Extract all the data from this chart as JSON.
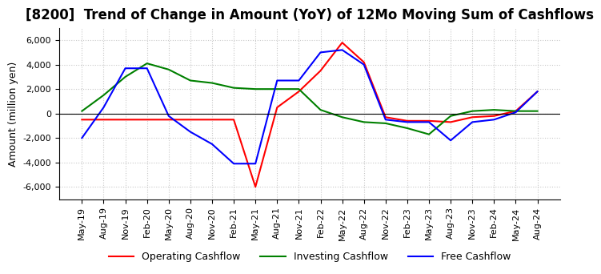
{
  "title": "[8200]  Trend of Change in Amount (YoY) of 12Mo Moving Sum of Cashflows",
  "ylabel": "Amount (million yen)",
  "ylim": [
    -7000,
    7000
  ],
  "yticks": [
    -6000,
    -4000,
    -2000,
    0,
    2000,
    4000,
    6000
  ],
  "x_labels": [
    "May-19",
    "Aug-19",
    "Nov-19",
    "Feb-20",
    "May-20",
    "Aug-20",
    "Nov-20",
    "Feb-21",
    "May-21",
    "Aug-21",
    "Nov-21",
    "Feb-22",
    "May-22",
    "Aug-22",
    "Nov-22",
    "Feb-23",
    "May-23",
    "Aug-23",
    "Nov-23",
    "Feb-24",
    "May-24",
    "Aug-24"
  ],
  "operating": [
    -500,
    -500,
    -500,
    -500,
    -500,
    -500,
    -500,
    -500,
    -6000,
    500,
    1800,
    3500,
    5800,
    4200,
    -300,
    -600,
    -600,
    -700,
    -300,
    -200,
    200,
    1800
  ],
  "investing": [
    200,
    1500,
    3000,
    4100,
    3600,
    2700,
    2500,
    2100,
    2000,
    2000,
    2000,
    300,
    -300,
    -700,
    -800,
    -1200,
    -1700,
    -200,
    200,
    300,
    200,
    200
  ],
  "free": [
    -2000,
    500,
    3700,
    3700,
    -200,
    -1500,
    -2500,
    -4100,
    -4100,
    2700,
    2700,
    5000,
    5200,
    4000,
    -500,
    -700,
    -700,
    -2200,
    -700,
    -500,
    100,
    1800
  ],
  "operating_color": "#ff0000",
  "investing_color": "#008000",
  "free_color": "#0000ff",
  "background_color": "#ffffff",
  "grid_color": "#c8c8c8",
  "title_fontsize": 12,
  "label_fontsize": 9,
  "tick_fontsize": 8
}
